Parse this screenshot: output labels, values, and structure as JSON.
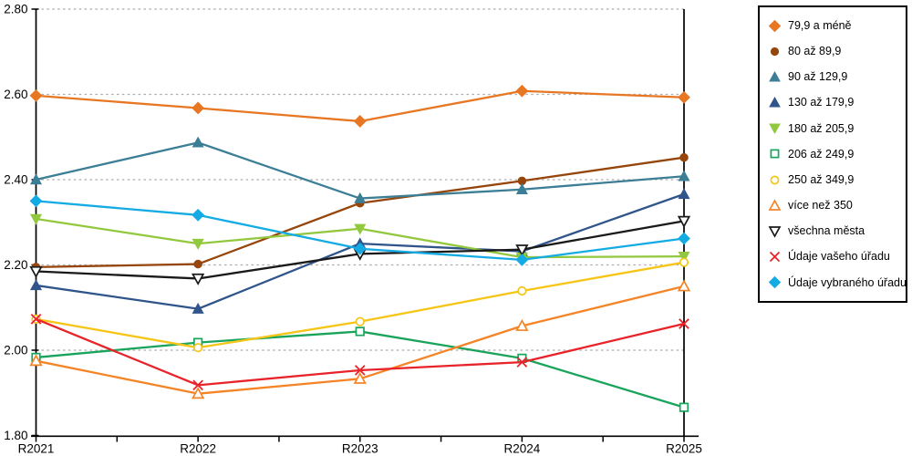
{
  "chart_data": {
    "type": "line",
    "title": "",
    "xlabel": "",
    "ylabel": "",
    "x": [
      "R2021",
      "R2022",
      "R2023",
      "R2024",
      "R2025"
    ],
    "ylim": [
      1.8,
      2.8
    ],
    "yticks": [
      "1.80",
      "2.00",
      "2.20",
      "2.40",
      "2.60",
      "2.80"
    ],
    "grid": "horizontal-dotted",
    "legend_position": "right",
    "axis_color": "#000000",
    "gridline_color": "#ababab",
    "series": [
      {
        "name": "79,9 a méně",
        "color": "#E87724",
        "marker": "diamond",
        "fill": true,
        "values": [
          2.597,
          2.568,
          2.537,
          2.608,
          2.593
        ]
      },
      {
        "name": "80 až 89,9",
        "color": "#96460C",
        "marker": "circle",
        "fill": true,
        "values": [
          2.195,
          2.202,
          2.345,
          2.397,
          2.452
        ]
      },
      {
        "name": "90 až 129,9",
        "color": "#3B7E95",
        "marker": "triangle-up",
        "fill": true,
        "values": [
          2.4,
          2.487,
          2.356,
          2.377,
          2.408
        ]
      },
      {
        "name": "130 až 179,9",
        "color": "#30558B",
        "marker": "triangle-up",
        "fill": true,
        "values": [
          2.152,
          2.097,
          2.25,
          2.232,
          2.366
        ]
      },
      {
        "name": "180 až 205,9",
        "color": "#92C83E",
        "marker": "triangle-down",
        "fill": true,
        "values": [
          2.308,
          2.25,
          2.285,
          2.218,
          2.22
        ]
      },
      {
        "name": "206 až 249,9",
        "color": "#1AA45B",
        "marker": "square",
        "fill": false,
        "values": [
          1.983,
          2.018,
          2.044,
          1.981,
          1.866
        ]
      },
      {
        "name": "250 až 349,9",
        "color": "#F5C518",
        "marker": "circle",
        "fill": false,
        "values": [
          2.073,
          2.006,
          2.067,
          2.139,
          2.206
        ]
      },
      {
        "name": "více než 350",
        "color": "#F58426",
        "marker": "triangle-up",
        "fill": false,
        "values": [
          1.975,
          1.898,
          1.933,
          2.057,
          2.15
        ]
      },
      {
        "name": "všechna města",
        "color": "#1A1A1A",
        "marker": "triangle-down",
        "fill": false,
        "values": [
          2.185,
          2.168,
          2.226,
          2.236,
          2.303
        ]
      },
      {
        "name": "Údaje vašeho úřadu",
        "color": "#E8232A",
        "marker": "x",
        "fill": false,
        "values": [
          2.073,
          1.918,
          1.953,
          1.972,
          2.062
        ]
      },
      {
        "name": "Údaje vybraného úřadu",
        "color": "#14ABE4",
        "marker": "diamond",
        "fill": true,
        "values": [
          2.35,
          2.317,
          2.238,
          2.212,
          2.262
        ]
      }
    ]
  }
}
